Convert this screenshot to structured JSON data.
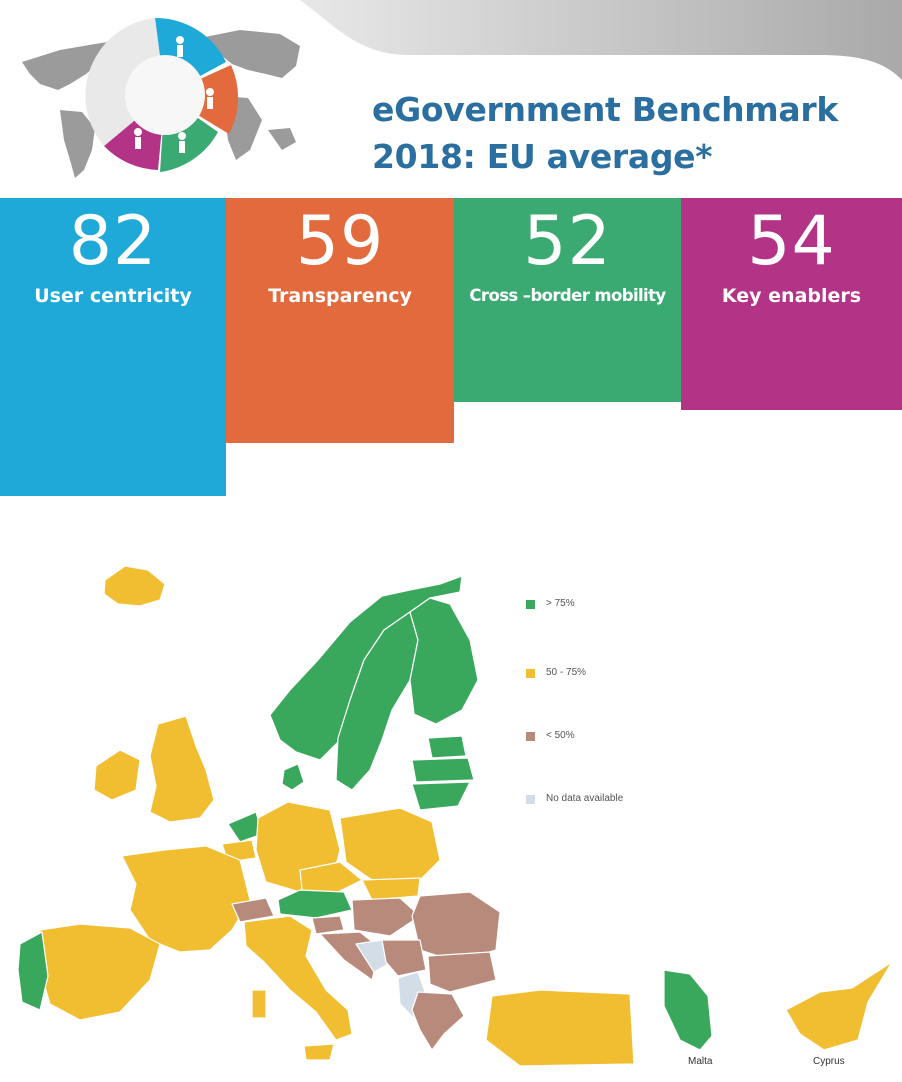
{
  "header": {
    "title_line1": "eGovernment Benchmark",
    "title_line2": "2018: EU average*"
  },
  "colors": {
    "title": "#2a6fa0",
    "user_centricity": "#1fa9d8",
    "transparency": "#e26a3c",
    "cross_border": "#3aaa72",
    "key_enablers": "#b33487",
    "green": "#3aa85c",
    "yellow": "#f1be32",
    "brown": "#b88a7c",
    "nodata": "#d2dde7"
  },
  "stats": [
    {
      "value": "82",
      "label": "User centricity",
      "color": "#1fa9d8"
    },
    {
      "value": "59",
      "label": "Transparency",
      "color": "#e26a3c"
    },
    {
      "value": "52",
      "label": "Cross –border mobility",
      "color": "#3aaa72"
    },
    {
      "value": "54",
      "label": "Key enablers",
      "color": "#b33487"
    }
  ],
  "legend": [
    {
      "label": "> 75%",
      "color": "#3aa85c"
    },
    {
      "label": "50 - 75%",
      "color": "#f1be32"
    },
    {
      "label": "< 50%",
      "color": "#b88a7c"
    },
    {
      "label": "No data available",
      "color": "#d2dde7"
    }
  ],
  "insets": {
    "malta": "Malta",
    "cyprus": "Cyprus"
  }
}
